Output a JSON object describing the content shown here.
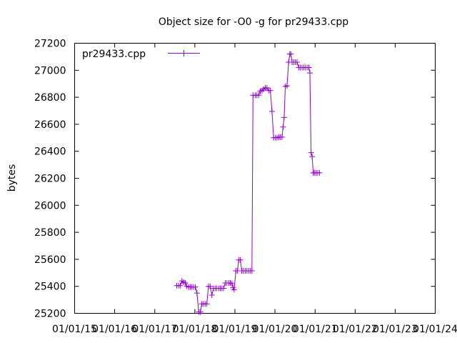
{
  "chart_data": {
    "type": "line",
    "title": "Object size for -O0 -g for pr29433.cpp",
    "xlabel": "",
    "ylabel": "bytes",
    "ylim": [
      25200,
      27200
    ],
    "yticks": [
      25200,
      25400,
      25600,
      25800,
      26000,
      26200,
      26400,
      26600,
      26800,
      27000,
      27200
    ],
    "xlim": [
      "2015-01-01",
      "2024-01-01"
    ],
    "xticks": [
      {
        "date": "2015-01-01",
        "label": "01/01/15"
      },
      {
        "date": "2016-01-01",
        "label": "01/01/16"
      },
      {
        "date": "2017-01-01",
        "label": "01/01/17"
      },
      {
        "date": "2018-01-01",
        "label": "01/01/18"
      },
      {
        "date": "2019-01-01",
        "label": "01/01/19"
      },
      {
        "date": "2020-01-01",
        "label": "01/01/20"
      },
      {
        "date": "2021-01-01",
        "label": "01/01/21"
      },
      {
        "date": "2022-01-01",
        "label": "01/01/22"
      },
      {
        "date": "2023-01-01",
        "label": "01/01/23"
      },
      {
        "date": "2024-01-01",
        "label": "01/01/24"
      }
    ],
    "grid": false,
    "legend": "top-left",
    "series": [
      {
        "name": "pr29433.cpp",
        "color": "#9400d3",
        "points": [
          [
            "2017-07-20",
            25405
          ],
          [
            "2017-08-05",
            25405
          ],
          [
            "2017-08-20",
            25405
          ],
          [
            "2017-09-05",
            25440
          ],
          [
            "2017-09-20",
            25430
          ],
          [
            "2017-10-05",
            25425
          ],
          [
            "2017-10-20",
            25400
          ],
          [
            "2017-11-05",
            25395
          ],
          [
            "2017-11-20",
            25395
          ],
          [
            "2017-12-05",
            25395
          ],
          [
            "2017-12-20",
            25395
          ],
          [
            "2018-01-05",
            25395
          ],
          [
            "2018-01-20",
            25350
          ],
          [
            "2018-02-05",
            25210
          ],
          [
            "2018-02-20",
            25210
          ],
          [
            "2018-03-05",
            25270
          ],
          [
            "2018-03-20",
            25270
          ],
          [
            "2018-04-05",
            25270
          ],
          [
            "2018-04-20",
            25270
          ],
          [
            "2018-05-05",
            25400
          ],
          [
            "2018-05-20",
            25400
          ],
          [
            "2018-06-05",
            25335
          ],
          [
            "2018-06-20",
            25385
          ],
          [
            "2018-07-05",
            25385
          ],
          [
            "2018-07-20",
            25385
          ],
          [
            "2018-08-05",
            25385
          ],
          [
            "2018-08-20",
            25385
          ],
          [
            "2018-09-05",
            25385
          ],
          [
            "2018-09-20",
            25385
          ],
          [
            "2018-10-05",
            25425
          ],
          [
            "2018-10-20",
            25425
          ],
          [
            "2018-11-05",
            25425
          ],
          [
            "2018-11-20",
            25425
          ],
          [
            "2018-12-05",
            25420
          ],
          [
            "2018-12-15",
            25390
          ],
          [
            "2018-12-25",
            25375
          ],
          [
            "2019-01-10",
            25515
          ],
          [
            "2019-01-25",
            25515
          ],
          [
            "2019-02-05",
            25595
          ],
          [
            "2019-02-20",
            25595
          ],
          [
            "2019-03-05",
            25515
          ],
          [
            "2019-03-20",
            25515
          ],
          [
            "2019-04-05",
            25515
          ],
          [
            "2019-04-20",
            25515
          ],
          [
            "2019-05-05",
            25515
          ],
          [
            "2019-05-20",
            25515
          ],
          [
            "2019-06-05",
            25515
          ],
          [
            "2019-06-15",
            26815
          ],
          [
            "2019-07-05",
            26815
          ],
          [
            "2019-07-20",
            26815
          ],
          [
            "2019-08-05",
            26815
          ],
          [
            "2019-08-20",
            26845
          ],
          [
            "2019-09-05",
            26850
          ],
          [
            "2019-09-20",
            26860
          ],
          [
            "2019-10-05",
            26870
          ],
          [
            "2019-10-20",
            26870
          ],
          [
            "2019-11-05",
            26850
          ],
          [
            "2019-11-20",
            26850
          ],
          [
            "2019-12-05",
            26695
          ],
          [
            "2019-12-20",
            26500
          ],
          [
            "2020-01-05",
            26500
          ],
          [
            "2020-01-20",
            26500
          ],
          [
            "2020-02-05",
            26505
          ],
          [
            "2020-02-20",
            26505
          ],
          [
            "2020-03-05",
            26505
          ],
          [
            "2020-03-15",
            26580
          ],
          [
            "2020-03-25",
            26650
          ],
          [
            "2020-04-05",
            26880
          ],
          [
            "2020-04-20",
            26885
          ],
          [
            "2020-05-05",
            27060
          ],
          [
            "2020-05-15",
            27120
          ],
          [
            "2020-05-25",
            27120
          ],
          [
            "2020-06-05",
            27060
          ],
          [
            "2020-06-20",
            27060
          ],
          [
            "2020-07-05",
            27060
          ],
          [
            "2020-07-20",
            27060
          ],
          [
            "2020-08-05",
            27020
          ],
          [
            "2020-08-20",
            27020
          ],
          [
            "2020-09-05",
            27020
          ],
          [
            "2020-09-20",
            27020
          ],
          [
            "2020-10-05",
            27020
          ],
          [
            "2020-10-20",
            27020
          ],
          [
            "2020-11-05",
            27020
          ],
          [
            "2020-11-15",
            26980
          ],
          [
            "2020-11-25",
            26390
          ],
          [
            "2020-12-05",
            26360
          ],
          [
            "2020-12-15",
            26240
          ],
          [
            "2020-12-25",
            26240
          ],
          [
            "2021-01-10",
            26240
          ],
          [
            "2021-01-25",
            26240
          ],
          [
            "2021-02-10",
            26240
          ]
        ]
      }
    ]
  }
}
